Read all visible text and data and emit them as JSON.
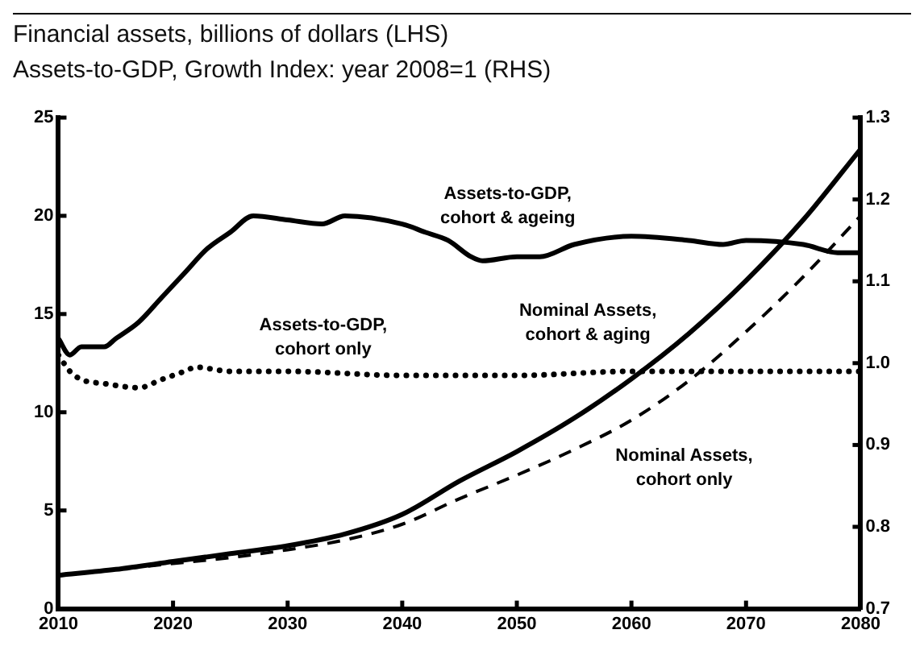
{
  "chart_data": {
    "type": "line",
    "title": "Financial assets, billions of dollars (LHS)",
    "subtitle": "Assets-to-GDP, Growth Index: year 2008=1 (RHS)",
    "xlim": [
      2010,
      2080
    ],
    "xticks": [
      2010,
      2020,
      2030,
      2040,
      2050,
      2060,
      2070,
      2080
    ],
    "ylim": [
      0,
      25
    ],
    "yticks": [
      0,
      5,
      10,
      15,
      20,
      25
    ],
    "y2lim": [
      0.7,
      1.3
    ],
    "y2ticks": [
      {
        "value": 0.7,
        "label": "0.7"
      },
      {
        "value": 0.8,
        "label": "0.8"
      },
      {
        "value": 0.9,
        "label": "0.9"
      },
      {
        "value": 1.0,
        "label": "1.0"
      },
      {
        "value": 1.1,
        "label": "1.1"
      },
      {
        "value": 1.2,
        "label": "1.2"
      },
      {
        "value": 1.3,
        "label": "1.3"
      }
    ],
    "grid": false,
    "legend": false,
    "marker": "none",
    "series": [
      {
        "name": "Nominal Assets, cohort & aging",
        "color": "#000000",
        "line_style": "solid",
        "x": [
          2010,
          2015,
          2020,
          2025,
          2030,
          2035,
          2040,
          2045,
          2050,
          2055,
          2060,
          2065,
          2070,
          2075,
          2080
        ],
        "values": [
          1.7,
          2.0,
          2.4,
          2.8,
          3.2,
          3.8,
          4.8,
          6.5,
          8.0,
          9.7,
          11.7,
          14.0,
          16.7,
          19.8,
          23.4
        ]
      },
      {
        "name": "Nominal Assets, cohort only",
        "color": "#000000",
        "line_style": "dashed",
        "x": [
          2010,
          2015,
          2020,
          2025,
          2030,
          2035,
          2040,
          2045,
          2050,
          2055,
          2060,
          2065,
          2070,
          2075,
          2080
        ],
        "values": [
          1.7,
          2.0,
          2.3,
          2.6,
          3.0,
          3.5,
          4.3,
          5.6,
          6.8,
          8.1,
          9.6,
          11.6,
          14.1,
          16.9,
          20.0
        ]
      },
      {
        "name": "Assets-to-GDP, cohort & ageing",
        "color": "#000000",
        "line_style": "solid",
        "axis": "y2",
        "x": [
          2010,
          2011,
          2012,
          2014,
          2015,
          2017,
          2019,
          2021,
          2023,
          2025,
          2027,
          2030,
          2033,
          2035,
          2040,
          2042,
          2044,
          2046,
          2047,
          2050,
          2052,
          2055,
          2060,
          2065,
          2068,
          2070,
          2075,
          2078,
          2080
        ],
        "values": [
          1.03,
          1.01,
          1.02,
          1.02,
          1.03,
          1.05,
          1.08,
          1.11,
          1.14,
          1.16,
          1.18,
          1.175,
          1.17,
          1.18,
          1.17,
          1.16,
          1.15,
          1.13,
          1.125,
          1.13,
          1.13,
          1.145,
          1.155,
          1.15,
          1.145,
          1.15,
          1.145,
          1.135,
          1.135
        ]
      },
      {
        "name": "Assets-to-GDP, cohort only",
        "color": "#000000",
        "line_style": "dotted",
        "axis": "y2",
        "x": [
          2010,
          2011,
          2012,
          2014,
          2017,
          2019,
          2021,
          2022,
          2025,
          2030,
          2040,
          2050,
          2060,
          2070,
          2080
        ],
        "values": [
          1.01,
          0.99,
          0.98,
          0.975,
          0.97,
          0.98,
          0.99,
          0.995,
          0.99,
          0.99,
          0.985,
          0.985,
          0.99,
          0.99,
          0.99
        ]
      }
    ]
  }
}
